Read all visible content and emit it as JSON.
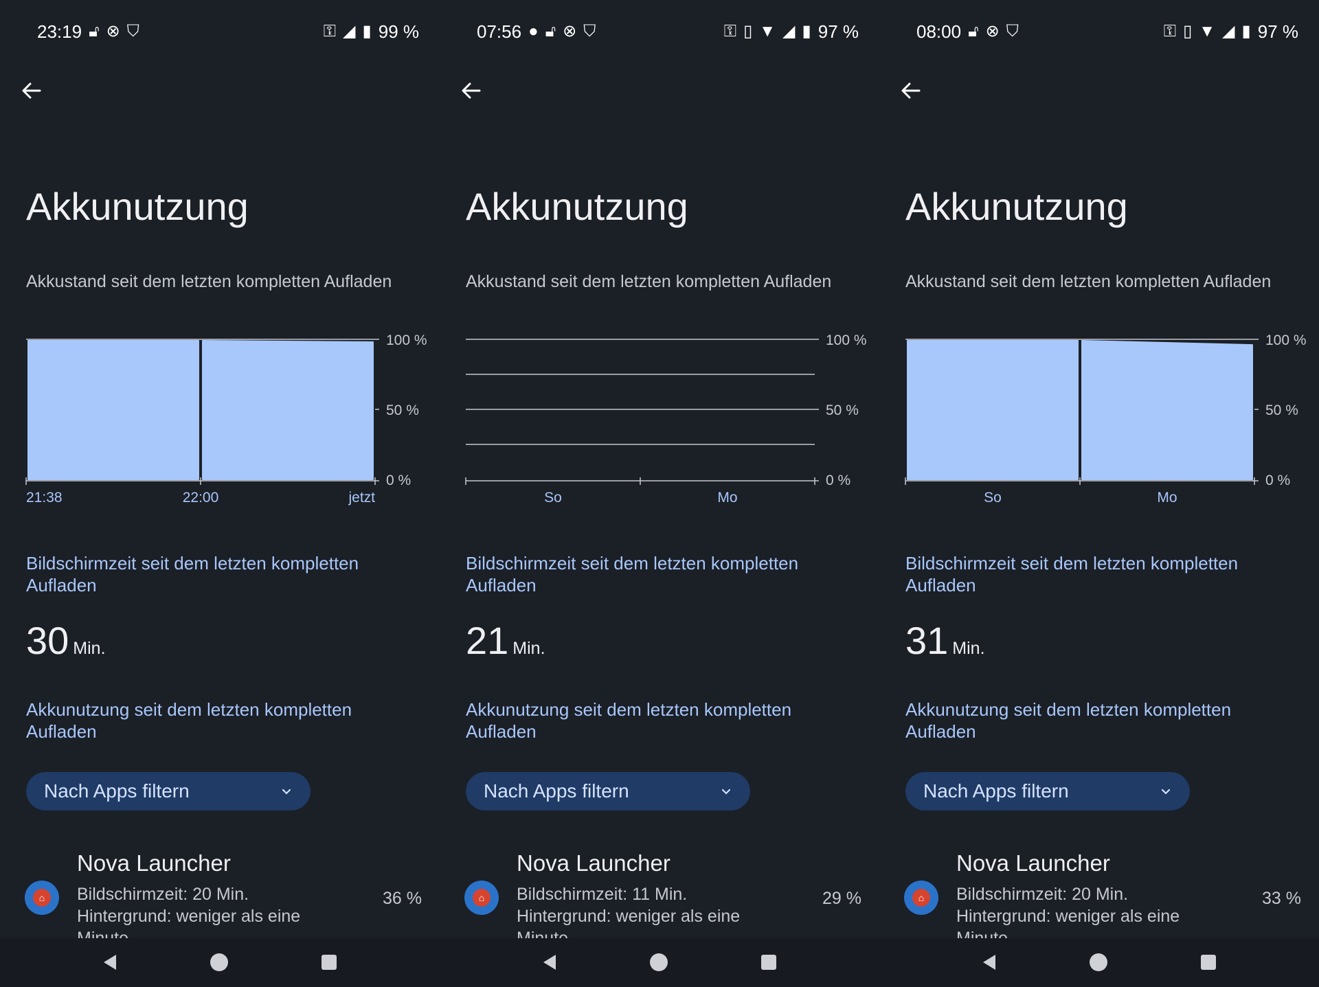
{
  "panels": [
    {
      "status": {
        "time": "23:19",
        "battery": "99 %"
      },
      "title": "Akkunutzung",
      "subtitle": "Akkustand seit dem letzten kompletten Aufladen",
      "chart_data": {
        "type": "area",
        "y_ticks": [
          "100 %",
          "50 %",
          "0 %"
        ],
        "x_labels": [
          "21:38",
          "22:00",
          "jetzt"
        ],
        "ylim": [
          0,
          100
        ],
        "segments": [
          {
            "start": 100,
            "end": 100
          },
          {
            "start": 100,
            "end": 99
          }
        ],
        "grid": false,
        "empty": false
      },
      "screen_label": "Bildschirmzeit seit dem letzten kompletten Aufladen",
      "screen_value": "30",
      "screen_unit": "Min.",
      "usage_label": "Akkunutzung seit dem letzten kompletten Aufladen",
      "filter_label": "Nach Apps filtern",
      "app": {
        "name": "Nova Launcher",
        "line1": "Bildschirmzeit: 20 Min.",
        "line2": "Hintergrund: weniger als eine",
        "line3": "Minute",
        "pct": "36 %"
      }
    },
    {
      "status": {
        "time": "07:56",
        "battery": "97 %"
      },
      "title": "Akkunutzung",
      "subtitle": "Akkustand seit dem letzten kompletten Aufladen",
      "chart_data": {
        "type": "area",
        "y_ticks": [
          "100 %",
          "50 %",
          "0 %"
        ],
        "x_labels": [
          "So",
          "Mo"
        ],
        "ylim": [
          0,
          100
        ],
        "segments": [],
        "grid": true,
        "empty": true
      },
      "screen_label": "Bildschirmzeit seit dem letzten kompletten Aufladen",
      "screen_value": "21",
      "screen_unit": "Min.",
      "usage_label": "Akkunutzung seit dem letzten kompletten Aufladen",
      "filter_label": "Nach Apps filtern",
      "app": {
        "name": "Nova Launcher",
        "line1": "Bildschirmzeit: 11 Min.",
        "line2": "Hintergrund: weniger als eine",
        "line3": "Minute",
        "pct": "29 %"
      }
    },
    {
      "status": {
        "time": "08:00",
        "battery": "97 %"
      },
      "title": "Akkunutzung",
      "subtitle": "Akkustand seit dem letzten kompletten Aufladen",
      "chart_data": {
        "type": "area",
        "y_ticks": [
          "100 %",
          "50 %",
          "0 %"
        ],
        "x_labels": [
          "So",
          "Mo"
        ],
        "ylim": [
          0,
          100
        ],
        "segments": [
          {
            "start": 100,
            "end": 100
          },
          {
            "start": 100,
            "end": 97
          }
        ],
        "grid": false,
        "empty": false
      },
      "screen_label": "Bildschirmzeit seit dem letzten kompletten Aufladen",
      "screen_value": "31",
      "screen_unit": "Min.",
      "usage_label": "Akkunutzung seit dem letzten kompletten Aufladen",
      "filter_label": "Nach Apps filtern",
      "app": {
        "name": "Nova Launcher",
        "line1": "Bildschirmzeit: 20 Min.",
        "line2": "Hintergrund: weniger als eine",
        "line3": "Minute",
        "pct": "33 %"
      }
    }
  ],
  "colors": {
    "bar": "#a8c7fa",
    "accent": "#a8c7fa",
    "chip": "#1f3b66",
    "background": "#1b1f26"
  },
  "icons": {
    "back": "arrow-left-icon",
    "filter": "chevron-down-icon",
    "nav_back": "triangle-back-icon",
    "nav_home": "circle-home-icon",
    "nav_recents": "square-recents-icon"
  }
}
